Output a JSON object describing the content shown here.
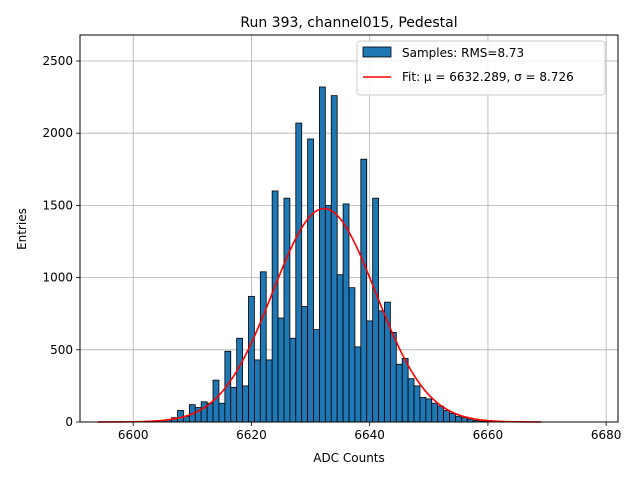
{
  "chart_data": {
    "type": "bar",
    "title": "Run 393, channel015, Pedestal",
    "xlabel": "ADC Counts",
    "ylabel": "Entries",
    "xlim": [
      6591,
      6682
    ],
    "ylim": [
      0,
      2680
    ],
    "xticks": [
      6600,
      6620,
      6640,
      6660,
      6680
    ],
    "yticks": [
      0,
      500,
      1000,
      1500,
      2000,
      2500
    ],
    "grid": true,
    "legend_position": "top-right",
    "bar_color": "#1f77b4",
    "fit_color": "#ff0000",
    "bin_width": 1,
    "histogram": {
      "name": "Samples: RMS=8.73",
      "bin_centers": [
        6604,
        6605,
        6606,
        6607,
        6608,
        6609,
        6610,
        6611,
        6612,
        6613,
        6614,
        6615,
        6616,
        6617,
        6618,
        6619,
        6620,
        6621,
        6622,
        6623,
        6624,
        6625,
        6626,
        6627,
        6628,
        6629,
        6630,
        6631,
        6632,
        6633,
        6634,
        6635,
        6636,
        6637,
        6638,
        6639,
        6640,
        6641,
        6642,
        6643,
        6644,
        6645,
        6646,
        6647,
        6648,
        6649,
        6650,
        6651,
        6652,
        6653,
        6654,
        6655,
        6656,
        6657,
        6658,
        6659,
        6660
      ],
      "counts": [
        5,
        10,
        15,
        30,
        80,
        40,
        120,
        100,
        140,
        130,
        290,
        130,
        490,
        240,
        580,
        250,
        870,
        430,
        1040,
        430,
        1600,
        720,
        1550,
        580,
        2070,
        800,
        1960,
        640,
        2320,
        1500,
        2260,
        1020,
        1510,
        930,
        520,
        1820,
        700,
        1550,
        770,
        830,
        620,
        400,
        440,
        300,
        250,
        170,
        160,
        130,
        110,
        80,
        60,
        40,
        30,
        20,
        10,
        5,
        5
      ]
    },
    "fit": {
      "name": "Fit: μ = 6632.289, σ = 8.726",
      "mu": 6632.289,
      "sigma": 8.726,
      "amplitude": 1478,
      "x_range": [
        6594,
        6669
      ]
    }
  }
}
